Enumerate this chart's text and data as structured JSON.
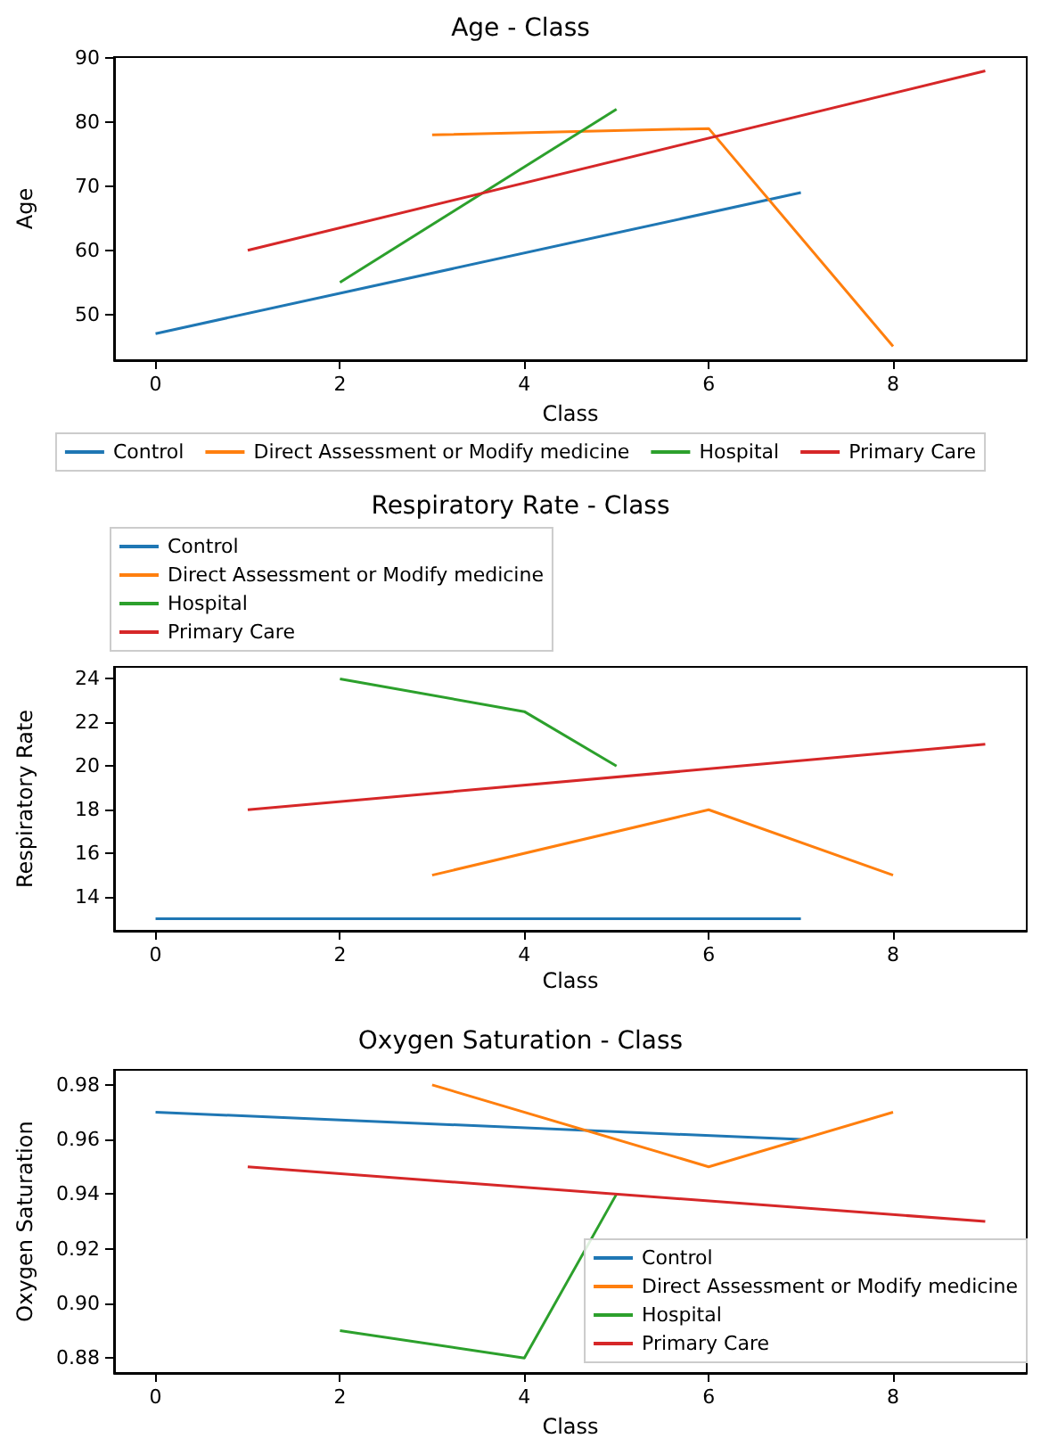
{
  "chart_data": [
    {
      "type": "line",
      "title": "Age - Class",
      "xlabel": "Class",
      "ylabel": "Age",
      "xlim": [
        -0.45,
        9.45
      ],
      "xticks": [
        0,
        2,
        4,
        6,
        8
      ],
      "ylim": [
        42.85,
        90.15
      ],
      "yticks": [
        50,
        60,
        70,
        80,
        90
      ],
      "grid": false,
      "legend": "bottom",
      "series": [
        {
          "name": "Control",
          "color": "#1f77b4",
          "x": [
            0,
            7
          ],
          "values": [
            47,
            69
          ]
        },
        {
          "name": "Direct Assessment or Modify medicine",
          "color": "#ff7f0e",
          "x": [
            3,
            6,
            8
          ],
          "values": [
            78,
            79,
            45
          ]
        },
        {
          "name": "Hospital",
          "color": "#2ca02c",
          "x": [
            2,
            5
          ],
          "values": [
            55,
            82
          ]
        },
        {
          "name": "Primary Care",
          "color": "#d62728",
          "x": [
            1,
            9
          ],
          "values": [
            60,
            88
          ]
        }
      ]
    },
    {
      "type": "line",
      "title": "Respiratory Rate - Class",
      "xlabel": "Class",
      "ylabel": "Respiratory Rate",
      "xlim": [
        -0.45,
        9.45
      ],
      "xticks": [
        0,
        2,
        4,
        6,
        8
      ],
      "ylim": [
        12.45,
        24.55
      ],
      "yticks": [
        14,
        16,
        18,
        20,
        22,
        24
      ],
      "grid": false,
      "legend": "top left",
      "series": [
        {
          "name": "Control",
          "color": "#1f77b4",
          "x": [
            0,
            7
          ],
          "values": [
            13,
            13
          ]
        },
        {
          "name": "Direct Assessment or Modify medicine",
          "color": "#ff7f0e",
          "x": [
            3,
            6,
            8
          ],
          "values": [
            15,
            18,
            15
          ]
        },
        {
          "name": "Hospital",
          "color": "#2ca02c",
          "x": [
            2,
            4,
            5
          ],
          "values": [
            24,
            22.5,
            20
          ]
        },
        {
          "name": "Primary Care",
          "color": "#d62728",
          "x": [
            1,
            9
          ],
          "values": [
            18,
            21
          ]
        }
      ]
    },
    {
      "type": "line",
      "title": "Oxygen Saturation - Class",
      "xlabel": "Class",
      "ylabel": "Oxygen Saturation",
      "xlim": [
        -0.45,
        9.45
      ],
      "xticks": [
        0,
        2,
        4,
        6,
        8
      ],
      "ylim": [
        0.8745,
        0.9855
      ],
      "yticks": [
        {
          "value": 0.88,
          "label": "0.88"
        },
        {
          "value": 0.9,
          "label": "0.90"
        },
        {
          "value": 0.92,
          "label": "0.92"
        },
        {
          "value": 0.94,
          "label": "0.94"
        },
        {
          "value": 0.96,
          "label": "0.96"
        },
        {
          "value": 0.98,
          "label": "0.98"
        }
      ],
      "grid": false,
      "legend": "bottom right",
      "series": [
        {
          "name": "Control",
          "color": "#1f77b4",
          "x": [
            0,
            7
          ],
          "values": [
            0.97,
            0.96
          ]
        },
        {
          "name": "Direct Assessment or Modify medicine",
          "color": "#ff7f0e",
          "x": [
            3,
            6,
            8
          ],
          "values": [
            0.98,
            0.95,
            0.97
          ]
        },
        {
          "name": "Hospital",
          "color": "#2ca02c",
          "x": [
            2,
            4,
            5
          ],
          "values": [
            0.89,
            0.88,
            0.94
          ]
        },
        {
          "name": "Primary Care",
          "color": "#d62728",
          "x": [
            1,
            9
          ],
          "values": [
            0.95,
            0.93
          ]
        }
      ]
    }
  ]
}
